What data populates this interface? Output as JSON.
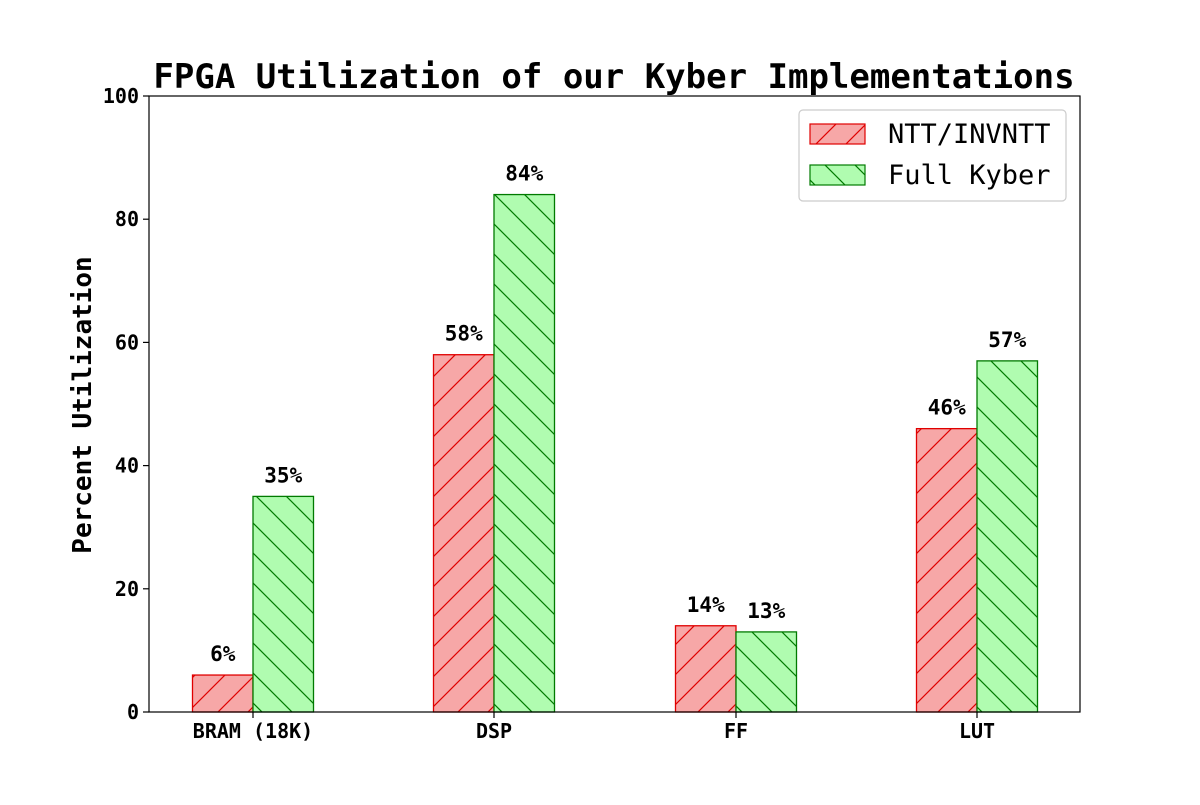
{
  "chart_data": {
    "type": "bar",
    "title": "FPGA Utilization of our Kyber Implementations",
    "xlabel": "",
    "ylabel": "Percent Utilization",
    "ylim": [
      0,
      100
    ],
    "yticks": [
      0,
      20,
      40,
      60,
      80,
      100
    ],
    "ytick_labels": [
      "0",
      "20",
      "40",
      "60",
      "80",
      "100"
    ],
    "grid": false,
    "legend_position": "top-right",
    "categories": [
      "BRAM (18K)",
      "DSP",
      "FF",
      "LUT"
    ],
    "series": [
      {
        "name": "NTT/INVNTT",
        "values": [
          6,
          58,
          14,
          46
        ],
        "labels": [
          "6%",
          "58%",
          "14%",
          "46%"
        ],
        "fill": "#f7a7a7",
        "stroke": "#e00000",
        "hatch": "forward-diagonal"
      },
      {
        "name": "Full Kyber",
        "values": [
          35,
          84,
          13,
          57
        ],
        "labels": [
          "35%",
          "84%",
          "13%",
          "57%"
        ],
        "fill": "#b0fcb0",
        "stroke": "#007a00",
        "hatch": "back-diagonal"
      }
    ]
  }
}
